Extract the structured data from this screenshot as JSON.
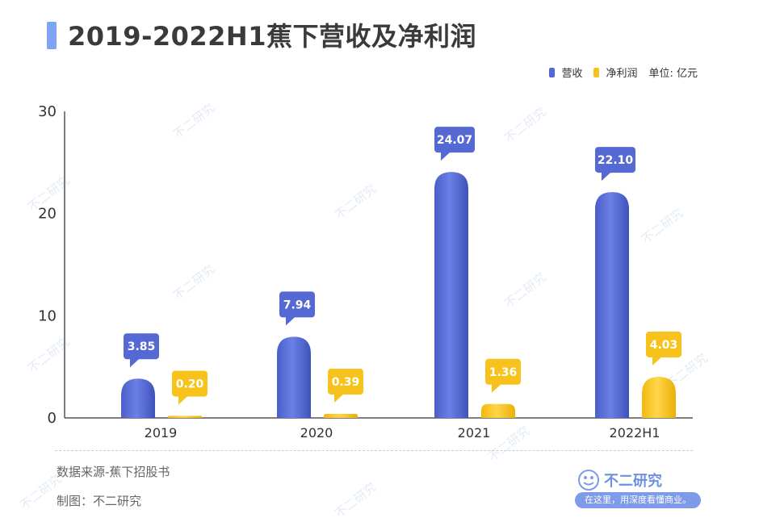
{
  "title": "2019-2022H1蕉下营收及净利润",
  "legend": {
    "revenue": "营收",
    "profit": "净利润",
    "unit": "单位: 亿元"
  },
  "colors": {
    "revenue": "#5469d4",
    "profit": "#f7c21c",
    "accent": "#7fa3f5"
  },
  "footer": {
    "source": "数据来源-蕉下招股书",
    "author": "制图：不二研究"
  },
  "brand": {
    "name": "不二研究",
    "tagline": "在这里，用深度看懂商业。"
  },
  "watermark_text": "不二研究",
  "chart_data": {
    "type": "bar",
    "title": "2019-2022H1蕉下营收及净利润",
    "categories": [
      "2019",
      "2020",
      "2021",
      "2022H1"
    ],
    "series": [
      {
        "name": "营收",
        "values": [
          3.85,
          7.94,
          24.07,
          22.1
        ],
        "labels": [
          "3.85",
          "7.94",
          "24.07",
          "22.10"
        ]
      },
      {
        "name": "净利润",
        "values": [
          0.2,
          0.39,
          1.36,
          4.03
        ],
        "labels": [
          "0.20",
          "0.39",
          "1.36",
          "4.03"
        ]
      }
    ],
    "yticks": [
      0,
      10,
      20,
      30
    ],
    "ylim": [
      0,
      30
    ],
    "xlabel": "",
    "ylabel": "",
    "unit": "单位: 亿元",
    "legend_position": "top-right"
  }
}
